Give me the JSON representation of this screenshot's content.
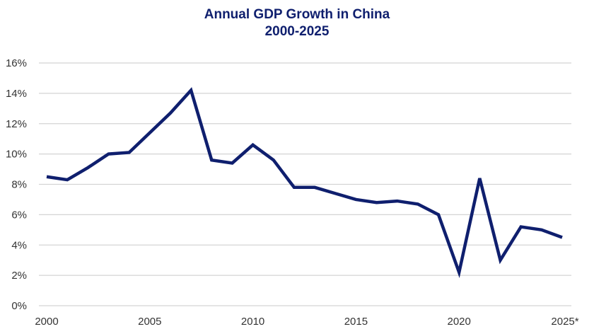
{
  "chart_data": {
    "type": "line",
    "title": "Annual GDP Growth in China",
    "subtitle": "2000-2025",
    "xlabel": "",
    "ylabel": "",
    "x": [
      2000,
      2001,
      2002,
      2003,
      2004,
      2005,
      2006,
      2007,
      2008,
      2009,
      2010,
      2011,
      2012,
      2013,
      2014,
      2015,
      2016,
      2017,
      2018,
      2019,
      2020,
      2021,
      2022,
      2023,
      2024,
      2025
    ],
    "series": [
      {
        "name": "GDP Growth",
        "color": "#0f1f6e",
        "values": [
          8.5,
          8.3,
          9.1,
          10.0,
          10.1,
          11.4,
          12.7,
          14.2,
          9.6,
          9.4,
          10.6,
          9.6,
          7.8,
          7.8,
          7.4,
          7.0,
          6.8,
          6.9,
          6.7,
          6.0,
          2.2,
          8.4,
          3.0,
          5.2,
          5.0,
          4.5
        ]
      }
    ],
    "ylim": [
      0,
      16
    ],
    "yticks": [
      "0%",
      "2%",
      "4%",
      "6%",
      "8%",
      "10%",
      "12%",
      "14%",
      "16%"
    ],
    "xticks": [
      "2000",
      "2005",
      "2010",
      "2015",
      "2020",
      "2025*"
    ],
    "grid": true,
    "legend": "none"
  }
}
